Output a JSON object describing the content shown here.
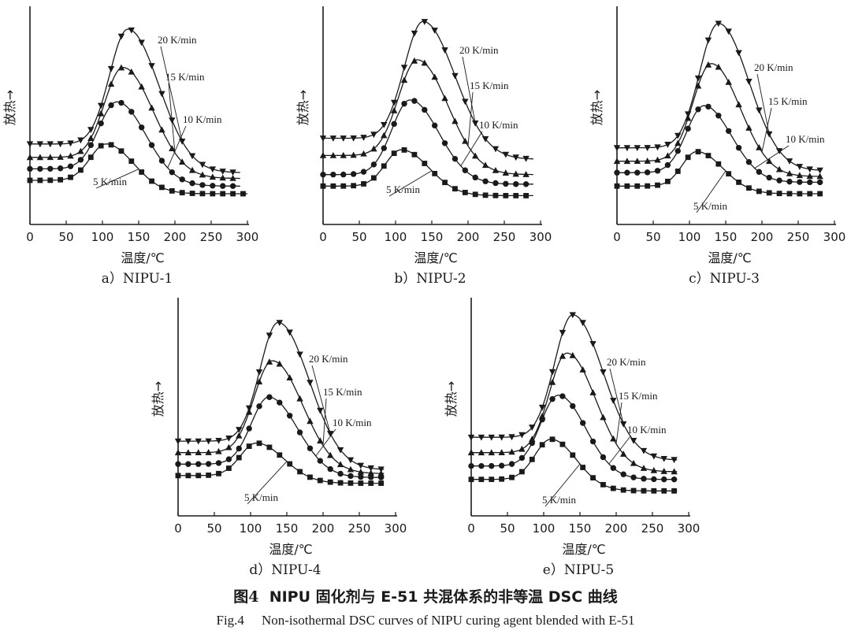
{
  "figure": {
    "caption_cn_prefix": "图",
    "caption_cn_number": "4",
    "caption_cn_text": "NIPU 固化剂与 E-51 共混体系的非等温 DSC 曲线",
    "caption_en_label": "Fig.4",
    "caption_en_text": "Non-isothermal DSC curves of NIPU curing agent blended with E-51"
  },
  "chart_data": [
    {
      "type": "line",
      "panel_label": "a）NIPU-1",
      "xlabel": "温度/℃",
      "ylabel": "放热→",
      "xlim": [
        0,
        300
      ],
      "xticks": [
        0,
        50,
        100,
        150,
        200,
        250,
        300
      ],
      "ylim": [
        0,
        100
      ],
      "series": [
        {
          "name": "5 K/min",
          "marker": "square",
          "baseline": 14,
          "tail": 7,
          "peak_x": 105,
          "peak_y": 33,
          "width_left": 22,
          "width_right": 38,
          "x_start": 0,
          "x_end": 300
        },
        {
          "name": "10 K/min",
          "marker": "circle",
          "baseline": 20,
          "tail": 11,
          "peak_x": 120,
          "peak_y": 55,
          "width_left": 25,
          "width_right": 40,
          "x_start": 0,
          "x_end": 290
        },
        {
          "name": "15 K/min",
          "marker": "triangle-up",
          "baseline": 26,
          "tail": 15,
          "peak_x": 128,
          "peak_y": 73,
          "width_left": 25,
          "width_right": 42,
          "x_start": 0,
          "x_end": 290
        },
        {
          "name": "20 K/min",
          "marker": "triangle-down",
          "baseline": 33,
          "tail": 18,
          "peak_x": 135,
          "peak_y": 93,
          "width_left": 25,
          "width_right": 43,
          "x_start": 0,
          "x_end": 290
        }
      ]
    },
    {
      "type": "line",
      "panel_label": "b）NIPU-2",
      "xlabel": "温度/℃",
      "ylabel": "放热→",
      "xlim": [
        0,
        300
      ],
      "xticks": [
        0,
        50,
        100,
        150,
        200,
        250,
        300
      ],
      "ylim": [
        0,
        100
      ],
      "series": [
        {
          "name": "5 K/min",
          "marker": "square",
          "baseline": 11,
          "tail": 6,
          "peak_x": 108,
          "peak_y": 30,
          "width_left": 22,
          "width_right": 38,
          "x_start": 0,
          "x_end": 290
        },
        {
          "name": "10 K/min",
          "marker": "circle",
          "baseline": 17,
          "tail": 12,
          "peak_x": 120,
          "peak_y": 56,
          "width_left": 25,
          "width_right": 40,
          "x_start": 0,
          "x_end": 290
        },
        {
          "name": "15 K/min",
          "marker": "triangle-up",
          "baseline": 27,
          "tail": 17,
          "peak_x": 130,
          "peak_y": 77,
          "width_left": 26,
          "width_right": 42,
          "x_start": 0,
          "x_end": 290
        },
        {
          "name": "20 K/min",
          "marker": "triangle-down",
          "baseline": 36,
          "tail": 25,
          "peak_x": 138,
          "peak_y": 97,
          "width_left": 26,
          "width_right": 44,
          "x_start": 0,
          "x_end": 290
        }
      ]
    },
    {
      "type": "line",
      "panel_label": "c）NIPU-3",
      "xlabel": "温度/℃",
      "ylabel": "放热→",
      "xlim": [
        0,
        300
      ],
      "xticks": [
        0,
        50,
        100,
        150,
        200,
        250,
        300
      ],
      "ylim": [
        0,
        100
      ],
      "series": [
        {
          "name": "5 K/min",
          "marker": "square",
          "baseline": 11,
          "tail": 7,
          "peak_x": 110,
          "peak_y": 29,
          "width_left": 20,
          "width_right": 36,
          "x_start": 0,
          "x_end": 280
        },
        {
          "name": "10 K/min",
          "marker": "circle",
          "baseline": 18,
          "tail": 13,
          "peak_x": 120,
          "peak_y": 53,
          "width_left": 24,
          "width_right": 38,
          "x_start": 0,
          "x_end": 280
        },
        {
          "name": "15 K/min",
          "marker": "triangle-up",
          "baseline": 24,
          "tail": 16,
          "peak_x": 130,
          "peak_y": 75,
          "width_left": 25,
          "width_right": 40,
          "x_start": 0,
          "x_end": 280
        },
        {
          "name": "20 K/min",
          "marker": "triangle-down",
          "baseline": 31,
          "tail": 19,
          "peak_x": 140,
          "peak_y": 96,
          "width_left": 26,
          "width_right": 42,
          "x_start": 0,
          "x_end": 280
        }
      ]
    },
    {
      "type": "line",
      "panel_label": "d）NIPU-4",
      "xlabel": "温度/℃",
      "ylabel": "放热→",
      "xlim": [
        0,
        300
      ],
      "xticks": [
        0,
        50,
        100,
        150,
        200,
        250,
        300
      ],
      "ylim": [
        0,
        100
      ],
      "series": [
        {
          "name": "5 K/min",
          "marker": "square",
          "baseline": 12,
          "tail": 8,
          "peak_x": 108,
          "peak_y": 29,
          "width_left": 22,
          "width_right": 38,
          "x_start": 0,
          "x_end": 285
        },
        {
          "name": "10 K/min",
          "marker": "circle",
          "baseline": 18,
          "tail": 11,
          "peak_x": 125,
          "peak_y": 53,
          "width_left": 24,
          "width_right": 40,
          "x_start": 0,
          "x_end": 285
        },
        {
          "name": "15 K/min",
          "marker": "triangle-up",
          "baseline": 24,
          "tail": 13,
          "peak_x": 130,
          "peak_y": 72,
          "width_left": 25,
          "width_right": 42,
          "x_start": 0,
          "x_end": 285
        },
        {
          "name": "20 K/min",
          "marker": "triangle-down",
          "baseline": 30,
          "tail": 15,
          "peak_x": 138,
          "peak_y": 92,
          "width_left": 25,
          "width_right": 43,
          "x_start": 0,
          "x_end": 285
        }
      ]
    },
    {
      "type": "line",
      "panel_label": "e）NIPU-5",
      "xlabel": "温度/℃",
      "ylabel": "放热→",
      "xlim": [
        0,
        300
      ],
      "xticks": [
        0,
        50,
        100,
        150,
        200,
        250,
        300
      ],
      "ylim": [
        0,
        100
      ],
      "series": [
        {
          "name": "5 K/min",
          "marker": "square",
          "baseline": 10,
          "tail": 4,
          "peak_x": 110,
          "peak_y": 31,
          "width_left": 22,
          "width_right": 35,
          "x_start": 0,
          "x_end": 285
        },
        {
          "name": "10 K/min",
          "marker": "circle",
          "baseline": 17,
          "tail": 10,
          "peak_x": 120,
          "peak_y": 54,
          "width_left": 24,
          "width_right": 38,
          "x_start": 0,
          "x_end": 285
        },
        {
          "name": "15 K/min",
          "marker": "triangle-up",
          "baseline": 24,
          "tail": 14,
          "peak_x": 132,
          "peak_y": 76,
          "width_left": 24,
          "width_right": 40,
          "x_start": 0,
          "x_end": 285
        },
        {
          "name": "20 K/min",
          "marker": "triangle-down",
          "baseline": 32,
          "tail": 20,
          "peak_x": 140,
          "peak_y": 96,
          "width_left": 25,
          "width_right": 42,
          "x_start": 0,
          "x_end": 285
        }
      ]
    }
  ]
}
